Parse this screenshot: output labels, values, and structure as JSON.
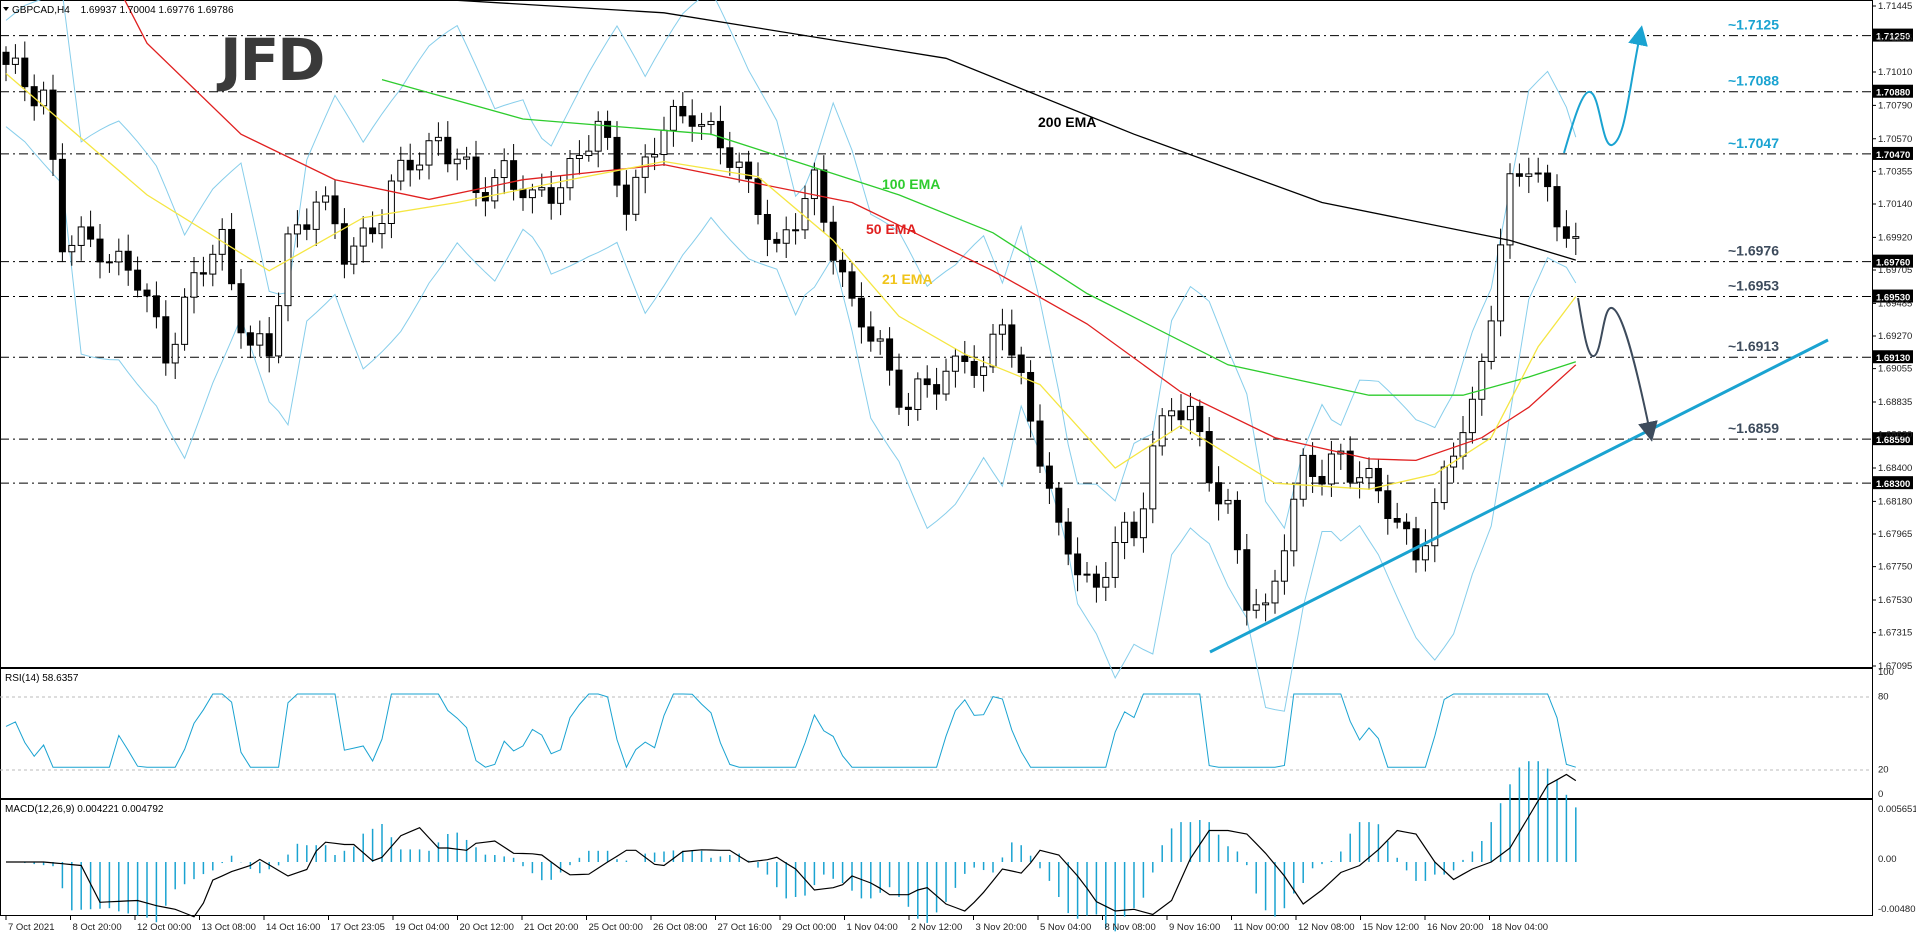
{
  "header": {
    "instrument": "GBPCAD,H4",
    "ohlc": "1.69937 1.70004 1.69776 1.69786",
    "rsi_label": "RSI(14) 58.6357",
    "macd_label": "MACD(12,26,9) 0.004221 0.004792"
  },
  "logo": {
    "text": "JFD",
    "color": "#3a3a3a"
  },
  "colors": {
    "candle": "#000000",
    "ema21": "#f5e642",
    "ema50": "#e02020",
    "ema100": "#2ecc2e",
    "ema200": "#000000",
    "bollinger": "#87ceeb",
    "trendline": "#1aa3d1",
    "arrow_up": "#1aa3d1",
    "arrow_down": "#3d4b5c",
    "rsi": "#1aa3d1",
    "macd_hist": "#1aa3d1",
    "level_text": "#1aa3d1",
    "tag_bg": "#000000"
  },
  "axis": {
    "price_ticks": [
      "1.71445",
      "1.71235",
      "1.71010",
      "1.70790",
      "1.70570",
      "1.70355",
      "1.70140",
      "1.69920",
      "1.69705",
      "1.69485",
      "1.69270",
      "1.69055",
      "1.68835",
      "1.68620",
      "1.68400",
      "1.68180",
      "1.67965",
      "1.67750",
      "1.67530",
      "1.67315",
      "1.67095"
    ],
    "rsi_ticks": [
      "100",
      "80",
      "20",
      "0"
    ],
    "macd_ticks": [
      "0.005651",
      "0.00",
      "-0.004803"
    ],
    "time_labels": [
      "7 Oct 2021",
      "8 Oct 20:00",
      "12 Oct 00:00",
      "13 Oct 08:00",
      "14 Oct 16:00",
      "17 Oct 23:05",
      "19 Oct 04:00",
      "20 Oct 12:00",
      "21 Oct 20:00",
      "25 Oct 00:00",
      "26 Oct 08:00",
      "27 Oct 16:00",
      "29 Oct 00:00",
      "1 Nov 04:00",
      "2 Nov 12:00",
      "3 Nov 20:00",
      "5 Nov 04:00",
      "8 Nov 08:00",
      "9 Nov 16:00",
      "11 Nov 00:00",
      "12 Nov 08:00",
      "15 Nov 12:00",
      "16 Nov 20:00",
      "18 Nov 04:00"
    ]
  },
  "levels": [
    {
      "label": "~1.7125",
      "tag": "1.71250",
      "price": 1.7125
    },
    {
      "label": "~1.7088",
      "tag": "1.70880",
      "price": 1.7088
    },
    {
      "label": "~1.7047",
      "tag": "1.70470",
      "price": 1.7047
    },
    {
      "label": "~1.6976",
      "tag": "1.69760",
      "price": 1.6976
    },
    {
      "label": "~1.6953",
      "tag": "1.69530",
      "price": 1.6953
    },
    {
      "label": "~1.6913",
      "tag": "1.69130",
      "price": 1.6913
    },
    {
      "label": "~1.6859",
      "tag": "1.68590",
      "price": 1.6859
    },
    {
      "label": "",
      "tag": "1.68300",
      "price": 1.683
    }
  ],
  "ema_labels": {
    "ema200": "200 EMA",
    "ema100": "100 EMA",
    "ema50": "50 EMA",
    "ema21": "21 EMA"
  },
  "chart_data": {
    "type": "line",
    "ylim": [
      1.67095,
      1.71445
    ],
    "candle_count": 168,
    "series": [
      {
        "name": "200 EMA",
        "points": [
          [
            30,
            1.7155
          ],
          [
            70,
            1.714
          ],
          [
            100,
            1.711
          ],
          [
            120,
            1.706
          ],
          [
            140,
            1.7015
          ],
          [
            160,
            1.699
          ],
          [
            167,
            1.6977
          ]
        ]
      },
      {
        "name": "100 EMA",
        "points": [
          [
            40,
            1.7096
          ],
          [
            55,
            1.707
          ],
          [
            75,
            1.706
          ],
          [
            95,
            1.702
          ],
          [
            105,
            1.6995
          ],
          [
            115,
            1.6955
          ],
          [
            130,
            1.6908
          ],
          [
            145,
            1.6888
          ],
          [
            155,
            1.6888
          ],
          [
            162,
            1.69
          ],
          [
            167,
            1.691
          ]
        ]
      },
      {
        "name": "50 EMA",
        "points": [
          [
            10,
            1.718
          ],
          [
            15,
            1.712
          ],
          [
            25,
            1.706
          ],
          [
            35,
            1.703
          ],
          [
            45,
            1.7017
          ],
          [
            55,
            1.703
          ],
          [
            70,
            1.704
          ],
          [
            90,
            1.7015
          ],
          [
            105,
            1.697
          ],
          [
            115,
            1.6935
          ],
          [
            125,
            1.689
          ],
          [
            135,
            1.686
          ],
          [
            145,
            1.6846
          ],
          [
            150,
            1.6845
          ],
          [
            157,
            1.686
          ],
          [
            162,
            1.688
          ],
          [
            167,
            1.6908
          ]
        ]
      },
      {
        "name": "21 EMA",
        "points": [
          [
            0,
            1.71
          ],
          [
            15,
            1.702
          ],
          [
            28,
            1.697
          ],
          [
            38,
            1.7005
          ],
          [
            48,
            1.7015
          ],
          [
            60,
            1.703
          ],
          [
            70,
            1.7042
          ],
          [
            80,
            1.7032
          ],
          [
            88,
            1.699
          ],
          [
            95,
            1.694
          ],
          [
            102,
            1.6915
          ],
          [
            110,
            1.6895
          ],
          [
            118,
            1.684
          ],
          [
            125,
            1.6868
          ],
          [
            135,
            1.683
          ],
          [
            145,
            1.6826
          ],
          [
            152,
            1.6836
          ],
          [
            158,
            1.686
          ],
          [
            163,
            1.692
          ],
          [
            167,
            1.6953
          ]
        ]
      }
    ]
  }
}
